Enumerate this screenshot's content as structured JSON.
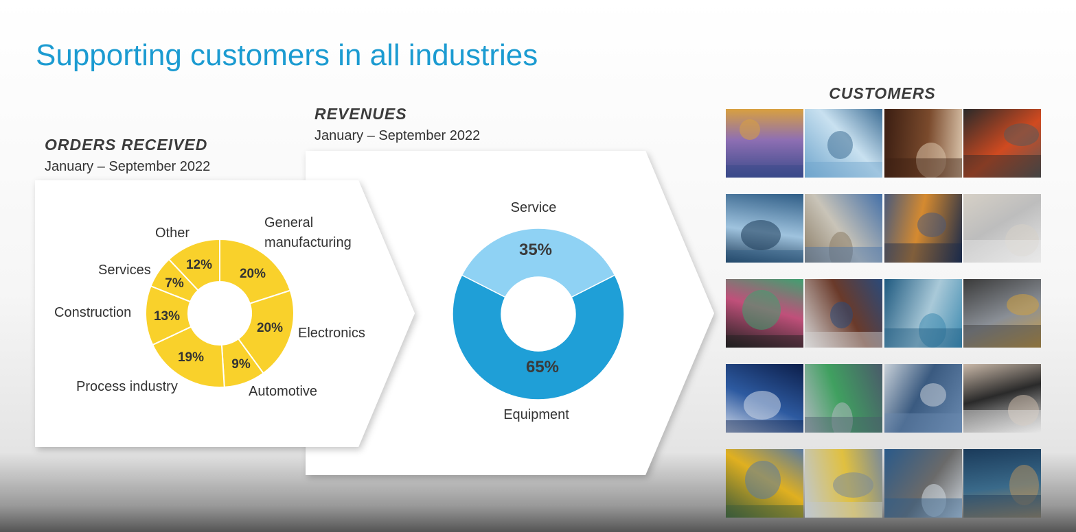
{
  "title": "Supporting customers in all industries",
  "orders": {
    "heading": "ORDERS RECEIVED",
    "period": "January – September 2022",
    "chart_data": {
      "type": "pie",
      "style": "donut",
      "color": "#f9d12b",
      "slices": [
        {
          "label": "General manufacturing",
          "value": 20,
          "value_label": "20%"
        },
        {
          "label": "Electronics",
          "value": 20,
          "value_label": "20%"
        },
        {
          "label": "Automotive",
          "value": 9,
          "value_label": "9%"
        },
        {
          "label": "Process industry",
          "value": 19,
          "value_label": "19%"
        },
        {
          "label": "Construction",
          "value": 13,
          "value_label": "13%"
        },
        {
          "label": "Services",
          "value": 7,
          "value_label": "7%"
        },
        {
          "label": "Other",
          "value": 12,
          "value_label": "12%"
        }
      ],
      "outer_labels": {
        "general": [
          "General",
          "manufacturing"
        ],
        "electronics": "Electronics",
        "automotive": "Automotive",
        "process": "Process industry",
        "construction": "Construction",
        "services": "Services",
        "other": "Other"
      }
    }
  },
  "revenues": {
    "heading": "REVENUES",
    "period": "January – September 2022",
    "chart_data": {
      "type": "pie",
      "style": "donut",
      "slices": [
        {
          "label": "Equipment",
          "value": 65,
          "value_label": "65%",
          "color": "#1f9fd7"
        },
        {
          "label": "Service",
          "value": 35,
          "value_label": "35%",
          "color": "#8fd2f4"
        }
      ]
    }
  },
  "customers": {
    "heading": "CUSTOMERS",
    "tiles": [
      {
        "name": "lab-worker-photo",
        "colors": [
          "#3a4a8a",
          "#8e6fb3",
          "#d8a040"
        ]
      },
      {
        "name": "surgeons-photo",
        "colors": [
          "#6fa5cc",
          "#c9e1f0",
          "#3f6f96"
        ]
      },
      {
        "name": "chocolates-photo",
        "colors": [
          "#3b1e12",
          "#7a4a2c",
          "#d9c3aa"
        ]
      },
      {
        "name": "yarn-spools-photo",
        "colors": [
          "#2a2a2a",
          "#d04a20",
          "#5a5a5a"
        ]
      },
      {
        "name": "factory-pipes-photo",
        "colors": [
          "#2f5d86",
          "#9fc3de",
          "#1c3a57"
        ]
      },
      {
        "name": "food-worker-photo",
        "colors": [
          "#4470a8",
          "#c9c4b8",
          "#8a7c66"
        ]
      },
      {
        "name": "city-night-photo",
        "colors": [
          "#1a2a4a",
          "#d58a30",
          "#4a5a7a"
        ]
      },
      {
        "name": "paper-stack-photo",
        "colors": [
          "#e8e8e8",
          "#bdbdbd",
          "#d6d0c6"
        ]
      },
      {
        "name": "chip-wafer-photo",
        "colors": [
          "#202020",
          "#c0507a",
          "#40a070"
        ]
      },
      {
        "name": "television-photo",
        "colors": [
          "#d8d8d8",
          "#6a3a2a",
          "#2a4a7a"
        ]
      },
      {
        "name": "underwater-robot-photo",
        "colors": [
          "#1f5a80",
          "#a9c9d8",
          "#3e8ab0"
        ]
      },
      {
        "name": "warehouse-worker-photo",
        "colors": [
          "#3a3a3a",
          "#8a8f96",
          "#d0a040"
        ]
      },
      {
        "name": "wind-turbines-photo",
        "colors": [
          "#0c1e4a",
          "#2d5aa0",
          "#cfd8e8"
        ]
      },
      {
        "name": "car-assembly-photo",
        "colors": [
          "#4a5a6a",
          "#40a060",
          "#b0b8c0"
        ]
      },
      {
        "name": "train-photo",
        "colors": [
          "#6a8ab0",
          "#3a5a80",
          "#c8d0d8"
        ]
      },
      {
        "name": "touchscreen-hand-photo",
        "colors": [
          "#e6e6e6",
          "#2a2a2a",
          "#c9b8a8"
        ]
      },
      {
        "name": "compressor-truck-photo",
        "colors": [
          "#3a5a3a",
          "#e0b020",
          "#5a7aa0"
        ]
      },
      {
        "name": "industrial-plant-photo",
        "colors": [
          "#c0c8d0",
          "#e0c040",
          "#7a8a9a"
        ]
      },
      {
        "name": "worker-machinery-photo",
        "colors": [
          "#2a5a8a",
          "#6a6a6a",
          "#d0d8e0"
        ]
      },
      {
        "name": "oil-rig-photo",
        "colors": [
          "#1a3a5a",
          "#3a6a8a",
          "#b09060"
        ]
      }
    ]
  }
}
